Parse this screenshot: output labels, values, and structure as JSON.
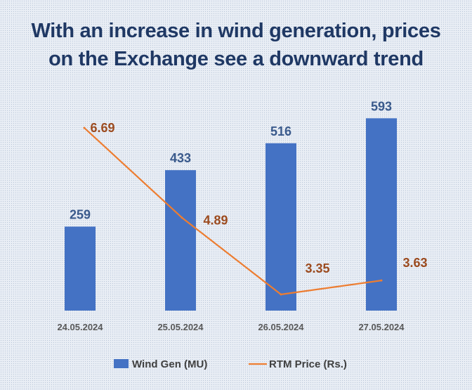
{
  "chart_data": {
    "type": "bar",
    "title_lines": [
      "With an increase in wind generation, prices",
      "on the Exchange see a downward trend"
    ],
    "categories": [
      "24.05.2024",
      "25.05.2024",
      "26.05.2024",
      "27.05.2024"
    ],
    "series": [
      {
        "name": "Wind Gen (MU)",
        "type": "bar",
        "values": [
          259,
          433,
          516,
          593
        ],
        "labels": [
          "259",
          "433",
          "516",
          "593"
        ],
        "color": "#4472c4"
      },
      {
        "name": "RTM Price (Rs.)",
        "type": "line",
        "values": [
          6.69,
          4.89,
          3.35,
          3.63
        ],
        "labels": [
          "6.69",
          "4.89",
          "3.35",
          "3.63"
        ],
        "color": "#ed7d31"
      }
    ],
    "bar_axis_range": [
      0,
      650
    ],
    "line_axis_range": [
      2.5,
      7.0
    ],
    "grid": false,
    "legend_position": "bottom"
  }
}
